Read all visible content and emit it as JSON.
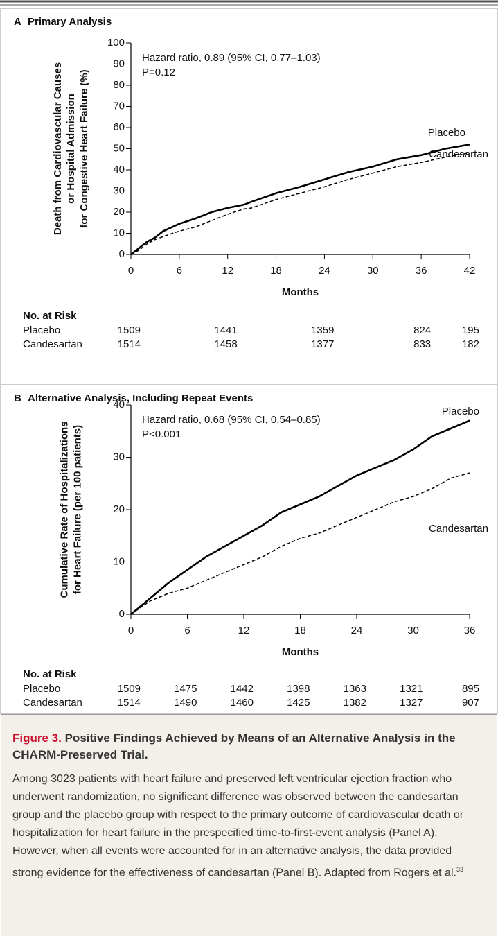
{
  "chart_data": [
    {
      "type": "line",
      "panel": "A",
      "title": "Primary Analysis",
      "ylabel": [
        "Death from Cardiovascular Causes",
        "or Hospital Admission",
        "for Congestive Heart Failure (%)"
      ],
      "xlabel": "Months",
      "annotations": [
        "Hazard ratio, 0.89 (95% CI, 0.77–1.03)",
        "P=0.12"
      ],
      "x": [
        0,
        1,
        2,
        3,
        4,
        6,
        8,
        9,
        10,
        12,
        14,
        15,
        18,
        21,
        24,
        27,
        30,
        33,
        36,
        39,
        42
      ],
      "series": [
        {
          "name": "Placebo",
          "color": "#000000",
          "dash": false,
          "values": [
            0,
            3,
            6,
            8,
            11,
            14.5,
            17,
            18.5,
            20,
            22,
            23.5,
            25,
            29,
            32,
            35.5,
            39,
            41.5,
            45,
            47,
            50,
            52
          ]
        },
        {
          "name": "Candesartan",
          "color": "#000000",
          "dash": true,
          "values": [
            0,
            2,
            5,
            7,
            8.5,
            11,
            13,
            14.5,
            16,
            19,
            21.5,
            22,
            26,
            29,
            32,
            35.5,
            38.5,
            41.5,
            43.5,
            46,
            48
          ]
        }
      ],
      "xlim": [
        0,
        42
      ],
      "xticks": [
        0,
        6,
        12,
        18,
        24,
        30,
        36,
        42
      ],
      "ylim": [
        0,
        100
      ],
      "yticks": [
        0,
        10,
        20,
        30,
        40,
        50,
        60,
        70,
        80,
        90,
        100
      ],
      "risk_table": {
        "title": "No. at Risk",
        "rows": [
          {
            "name": "Placebo",
            "values": [
              1509,
              1441,
              1359,
              824,
              195
            ]
          },
          {
            "name": "Candesartan",
            "values": [
              1514,
              1458,
              1377,
              833,
              182
            ]
          }
        ]
      }
    },
    {
      "type": "line",
      "panel": "B",
      "title": "Alternative Analysis, Including Repeat Events",
      "ylabel": [
        "Cumulative Rate of Hospitalizations",
        "for Heart Failure (per 100 patients)"
      ],
      "xlabel": "Months",
      "annotations": [
        "Hazard ratio, 0.68 (95% CI, 0.54–0.85)",
        "P<0.001"
      ],
      "x": [
        0,
        2,
        4,
        6,
        8,
        10,
        12,
        14,
        16,
        18,
        20,
        22,
        24,
        26,
        28,
        30,
        32,
        34,
        36
      ],
      "series": [
        {
          "name": "Placebo",
          "color": "#000000",
          "dash": false,
          "values": [
            0,
            3,
            6,
            8.5,
            11,
            13,
            15,
            17,
            19.5,
            21,
            22.5,
            24.5,
            26.5,
            28,
            29.5,
            31.5,
            34,
            35.5,
            37
          ]
        },
        {
          "name": "Candesartan",
          "color": "#000000",
          "dash": true,
          "values": [
            0,
            2.5,
            4,
            5,
            6.5,
            8,
            9.5,
            11,
            13,
            14.5,
            15.5,
            17,
            18.5,
            20,
            21.5,
            22.5,
            24,
            26,
            27
          ]
        }
      ],
      "xlim": [
        0,
        36
      ],
      "xticks": [
        0,
        6,
        12,
        18,
        24,
        30,
        36
      ],
      "ylim": [
        0,
        40
      ],
      "yticks": [
        0,
        10,
        20,
        30,
        40
      ],
      "risk_table": {
        "title": "No. at Risk",
        "rows": [
          {
            "name": "Placebo",
            "values": [
              1509,
              1475,
              1442,
              1398,
              1363,
              1321,
              895
            ]
          },
          {
            "name": "Candesartan",
            "values": [
              1514,
              1490,
              1460,
              1425,
              1382,
              1327,
              907
            ]
          }
        ]
      }
    }
  ],
  "caption": {
    "label": "Figure 3.",
    "heading": "Positive Findings Achieved by Means of an Alternative Analysis in the CHARM-Preserved Trial.",
    "body": "Among 3023 patients with heart failure and preserved left ventricular ejection fraction who underwent randomization, no significant difference was observed between the candesartan group and the placebo group with respect to the primary outcome of cardiovascular death or hospitalization for heart failure in the prespecified time-to-first-event analysis (Panel A). However, when all events were accounted for in an alternative analysis, the data provided strong evidence for the effectiveness of candesartan (Panel B). Adapted from Rogers et al.",
    "ref": "33"
  }
}
